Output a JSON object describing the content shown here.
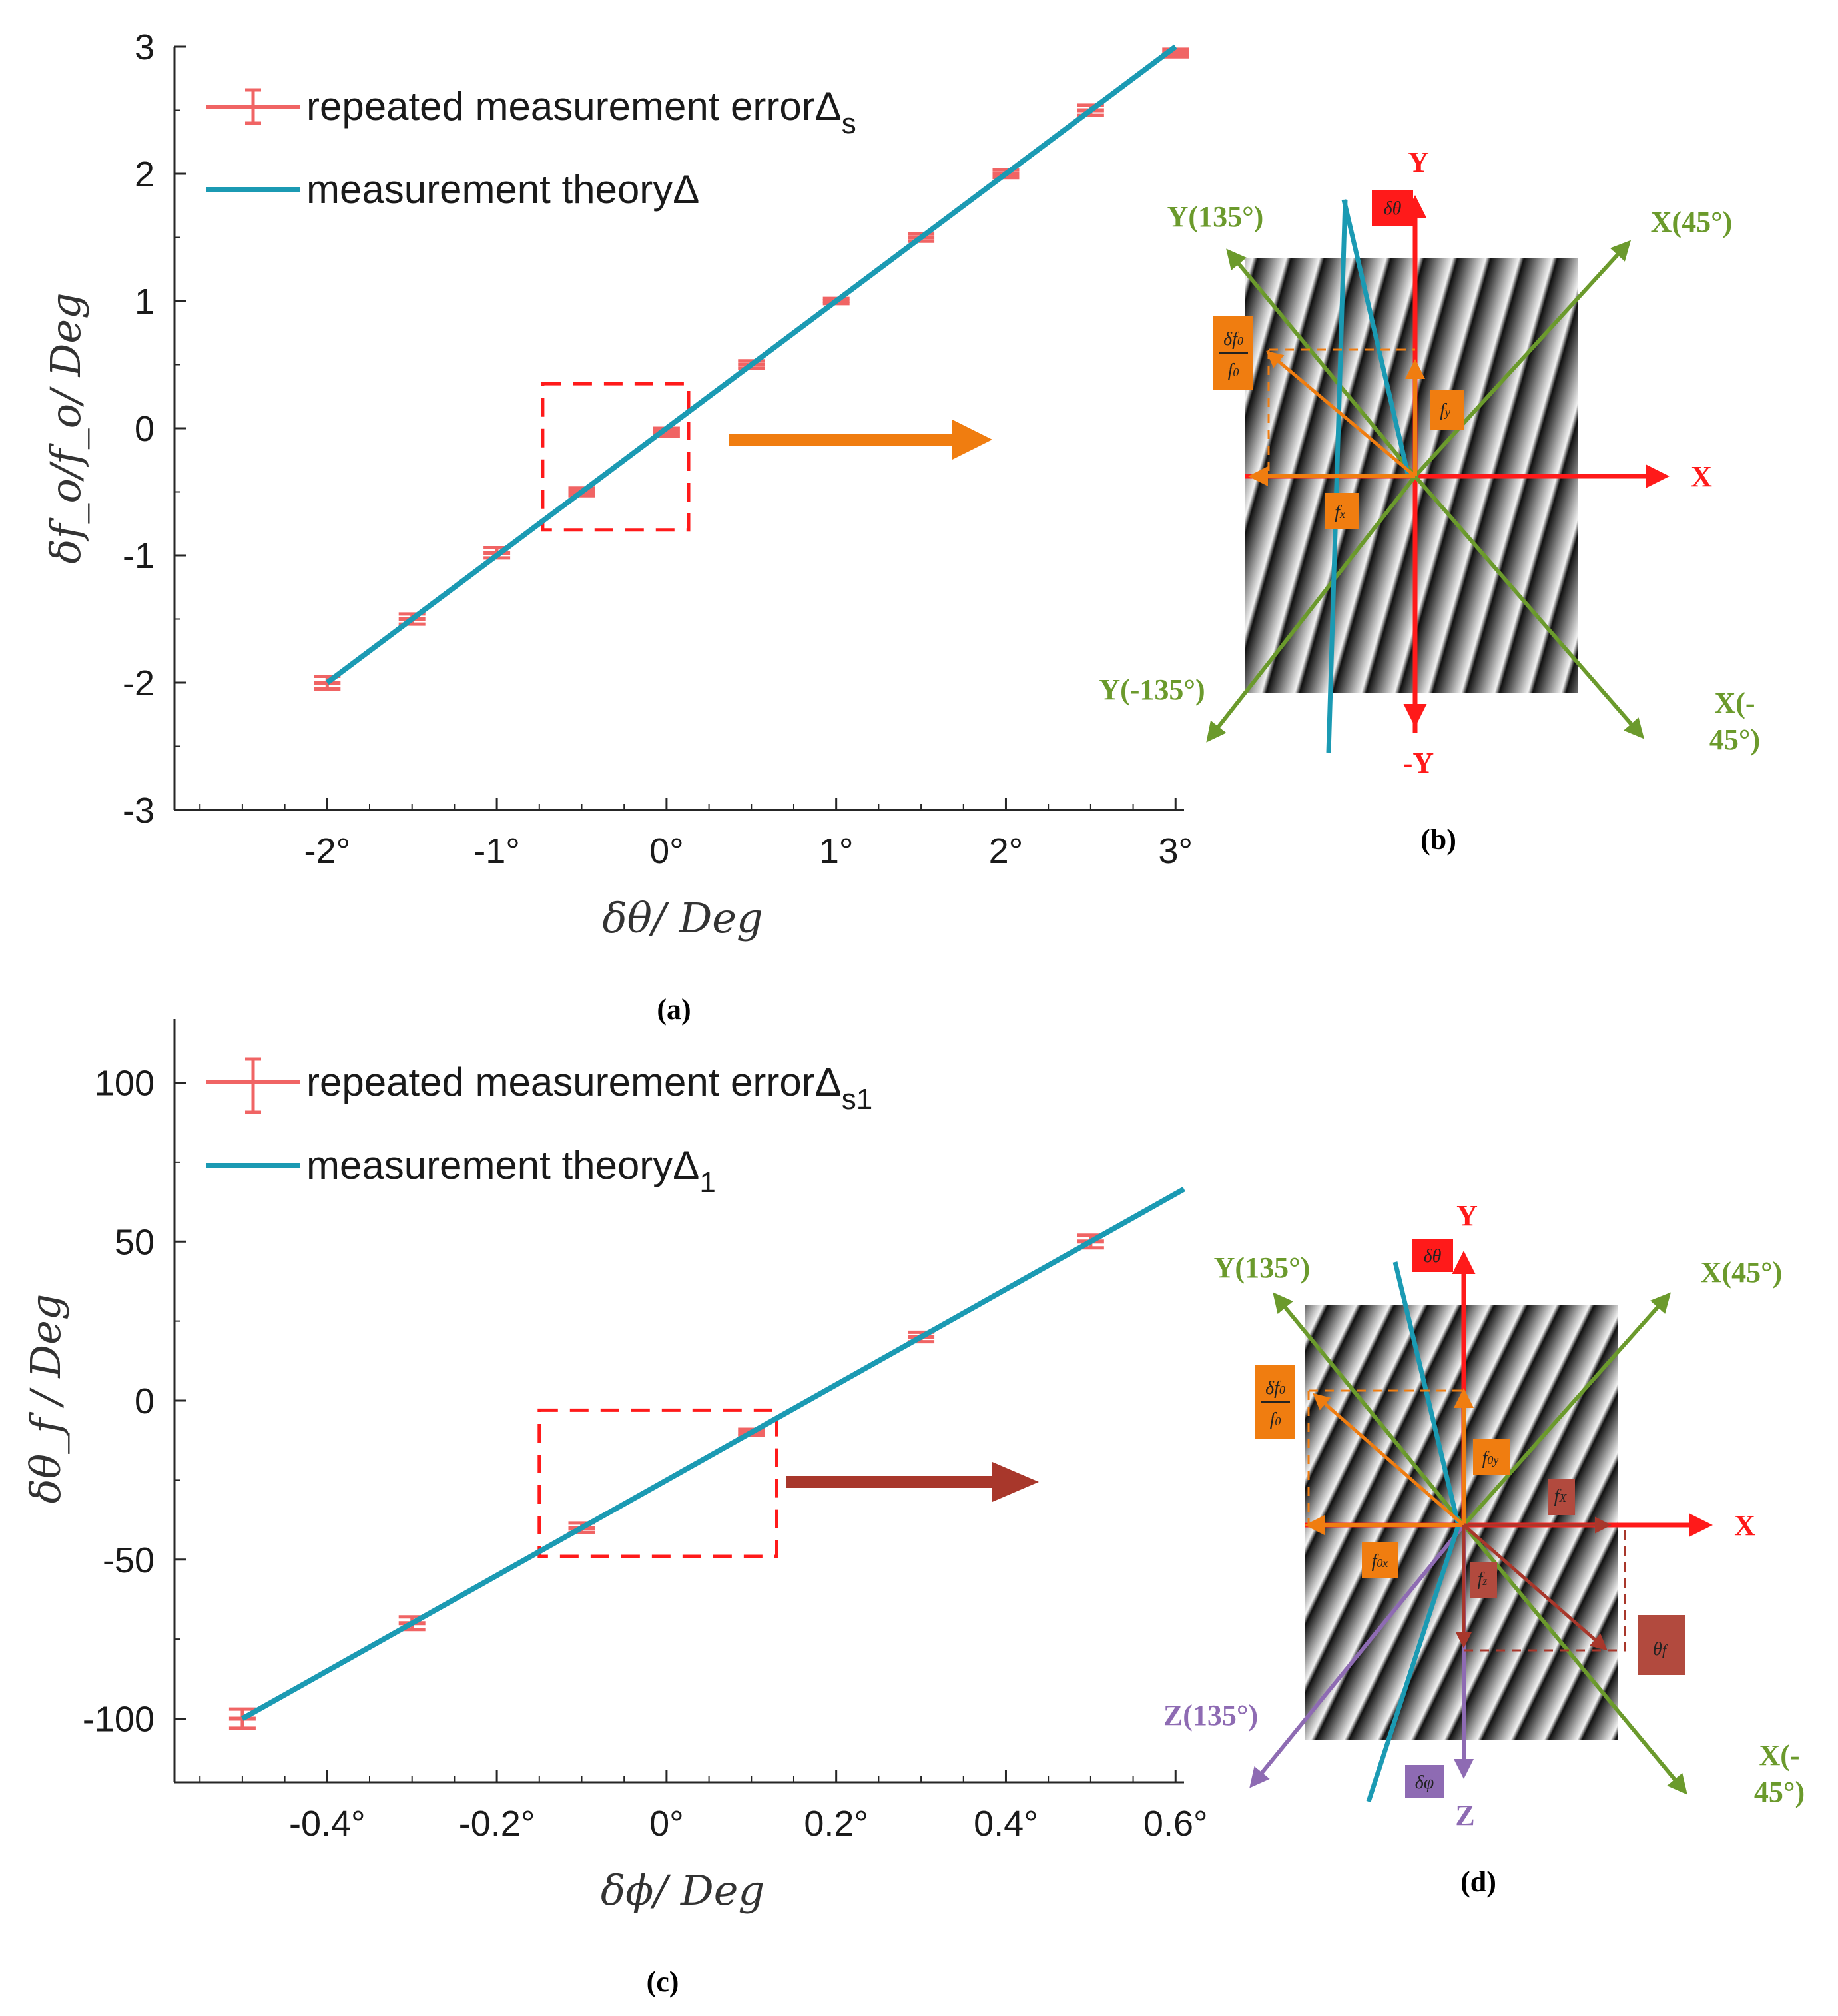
{
  "chart_data": [
    {
      "type": "line",
      "subfig": "(a)",
      "xlabel": "δθ/ Deg",
      "ylabel": "δf_o/f_o/ Deg",
      "xlim": [
        -2.9,
        3.05
      ],
      "ylim": [
        -3,
        3
      ],
      "xticks": [
        -2,
        -1,
        0,
        1,
        2,
        3
      ],
      "xtick_labels": [
        "-2°",
        "-1°",
        "0°",
        "1°",
        "2°",
        "3°"
      ],
      "yticks": [
        -3,
        -2,
        -1,
        0,
        1,
        2,
        3
      ],
      "ytick_labels": [
        "-3",
        "-2",
        "-1",
        "0",
        "1",
        "2",
        "3"
      ],
      "legend_position": "top-left",
      "series": [
        {
          "name": "repeated measurement error",
          "name_symbol": "Δ",
          "name_sub": "s",
          "kind": "errorbar",
          "color": "#f06464",
          "x": [
            -2,
            -1.5,
            -1,
            -0.5,
            0,
            0.5,
            1,
            1.5,
            2,
            2.5,
            3
          ],
          "y": [
            -2,
            -1.5,
            -0.98,
            -0.5,
            -0.03,
            0.5,
            1.0,
            1.5,
            2.0,
            2.5,
            2.95
          ],
          "err": [
            0.05,
            0.04,
            0.04,
            0.03,
            0.03,
            0.03,
            0.02,
            0.03,
            0.03,
            0.04,
            0.03
          ]
        },
        {
          "name": "measurement theory",
          "name_symbol": "Δ",
          "name_sub": "",
          "kind": "line",
          "color": "#1b9ab3",
          "x": [
            -2,
            3
          ],
          "y": [
            -2,
            3
          ]
        }
      ],
      "zoom_box": {
        "x": [
          -0.73,
          0.13
        ],
        "y": [
          -0.8,
          0.35
        ]
      }
    },
    {
      "type": "line",
      "subfig": "(c)",
      "xlabel": "δϕ/ Deg",
      "ylabel": "δθ_f / Deg",
      "xlim": [
        -0.58,
        0.61
      ],
      "ylim": [
        -120,
        120
      ],
      "xticks": [
        -0.4,
        -0.2,
        0,
        0.2,
        0.4,
        0.6
      ],
      "xtick_labels": [
        "-0.4°",
        "-0.2°",
        "0°",
        "0.2°",
        "0.4°",
        "0.6°"
      ],
      "yticks": [
        -100,
        -50,
        0,
        50,
        100
      ],
      "ytick_labels": [
        "-100",
        "-50",
        "0",
        "50",
        "100"
      ],
      "legend_position": "top-left",
      "series": [
        {
          "name": "repeated measurement error",
          "name_symbol": "Δ",
          "name_sub": "s1",
          "kind": "errorbar",
          "color": "#f06464",
          "x": [
            -0.5,
            -0.3,
            -0.1,
            0.1,
            0.3,
            0.5
          ],
          "y": [
            -100,
            -70,
            -40,
            -10,
            20,
            50
          ],
          "err": [
            3,
            2,
            1.5,
            1,
            1.5,
            2
          ]
        },
        {
          "name": "measurement theory",
          "name_symbol": "Δ",
          "name_sub": "1",
          "kind": "line",
          "color": "#1b9ab3",
          "x": [
            -0.5,
            0.61
          ],
          "y": [
            -100,
            66.5
          ]
        }
      ],
      "zoom_box": {
        "x": [
          -0.15,
          0.13
        ],
        "y": [
          -49,
          -3
        ]
      }
    }
  ],
  "diagram_b": {
    "subfig": "(b)",
    "labels": {
      "y": "Y",
      "neg_y": "-Y",
      "x": "X",
      "x45": "X(45°)",
      "y135": "Y(135°)",
      "yneg135": "Y(-135°)",
      "xneg45_1": "X(-",
      "xneg45_2": "45°)",
      "dtheta": "δθ",
      "fy": "f",
      "fy_sub": "y",
      "fx": "f",
      "fx_sub": "x",
      "df": "δf",
      "df_sub": "0",
      "f0": "f",
      "f0_sub": "0"
    }
  },
  "diagram_d": {
    "subfig": "(d)",
    "labels": {
      "y": "Y",
      "x": "X",
      "z": "Z",
      "x45": "X(45°)",
      "y135": "Y(135°)",
      "z135": "Z(135°)",
      "xneg45_1": "X(-",
      "xneg45_2": "45°)",
      "dtheta": "δθ",
      "dphi": "δφ",
      "f0y": "f",
      "f0y_sub": "0y",
      "f0x": "f",
      "f0x_sub": "0x",
      "fz": "f",
      "fz_sub": "z",
      "fX": "f",
      "fX_sub": "X",
      "thetaf": "θ",
      "thetaf_sub": "f",
      "df": "δf",
      "df_sub": "0",
      "f0": "f",
      "f0_sub": "0"
    }
  },
  "colors": {
    "error": "#f06464",
    "theory": "#1b9ab3",
    "red": "#ff1a1a",
    "green": "#6b9a2c",
    "orange": "#f07d10",
    "brown": "#a8372b",
    "purple": "#8e6bb3",
    "darkred": "#b24a3e"
  }
}
